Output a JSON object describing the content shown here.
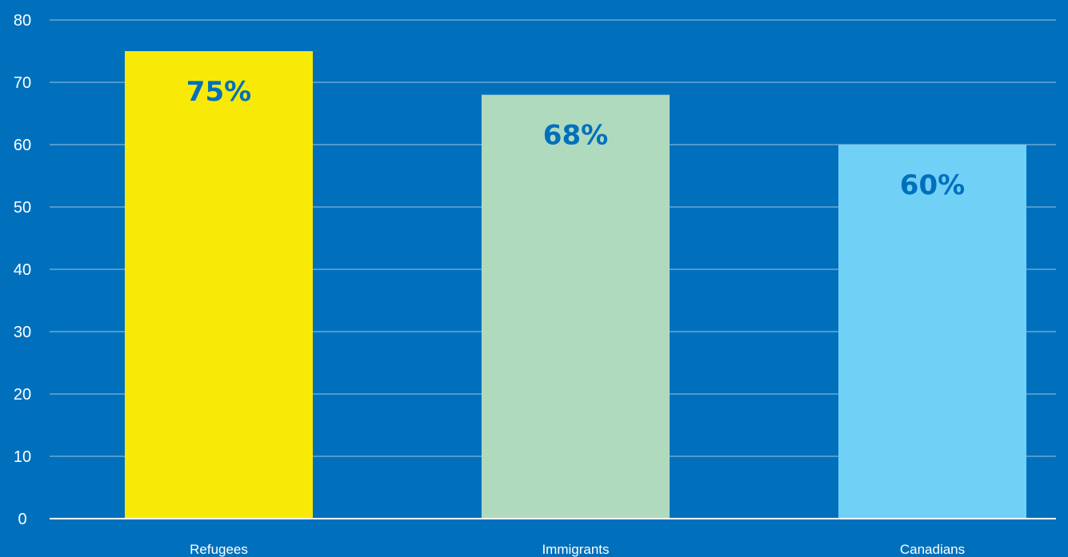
{
  "chart_data": {
    "type": "bar",
    "title": "",
    "xlabel": "",
    "ylabel": "",
    "categories": [
      "Refugees",
      "Immigrants",
      "Canadians"
    ],
    "values": [
      75,
      68,
      60
    ],
    "data_labels": [
      "75%",
      "68%",
      "60%"
    ],
    "bar_colors": [
      "#F8EA06",
      "#B0DABE",
      "#70D0F6"
    ],
    "ylim": [
      0,
      80
    ],
    "yticks": [
      0,
      10,
      20,
      30,
      40,
      50,
      60,
      70,
      80
    ],
    "grid": true,
    "legend": "none"
  },
  "colors": {
    "background": "#0170BC",
    "gridline": "#9CC3DE",
    "axis_text": "#FFFFFF",
    "data_label_text": "#0170BC"
  }
}
